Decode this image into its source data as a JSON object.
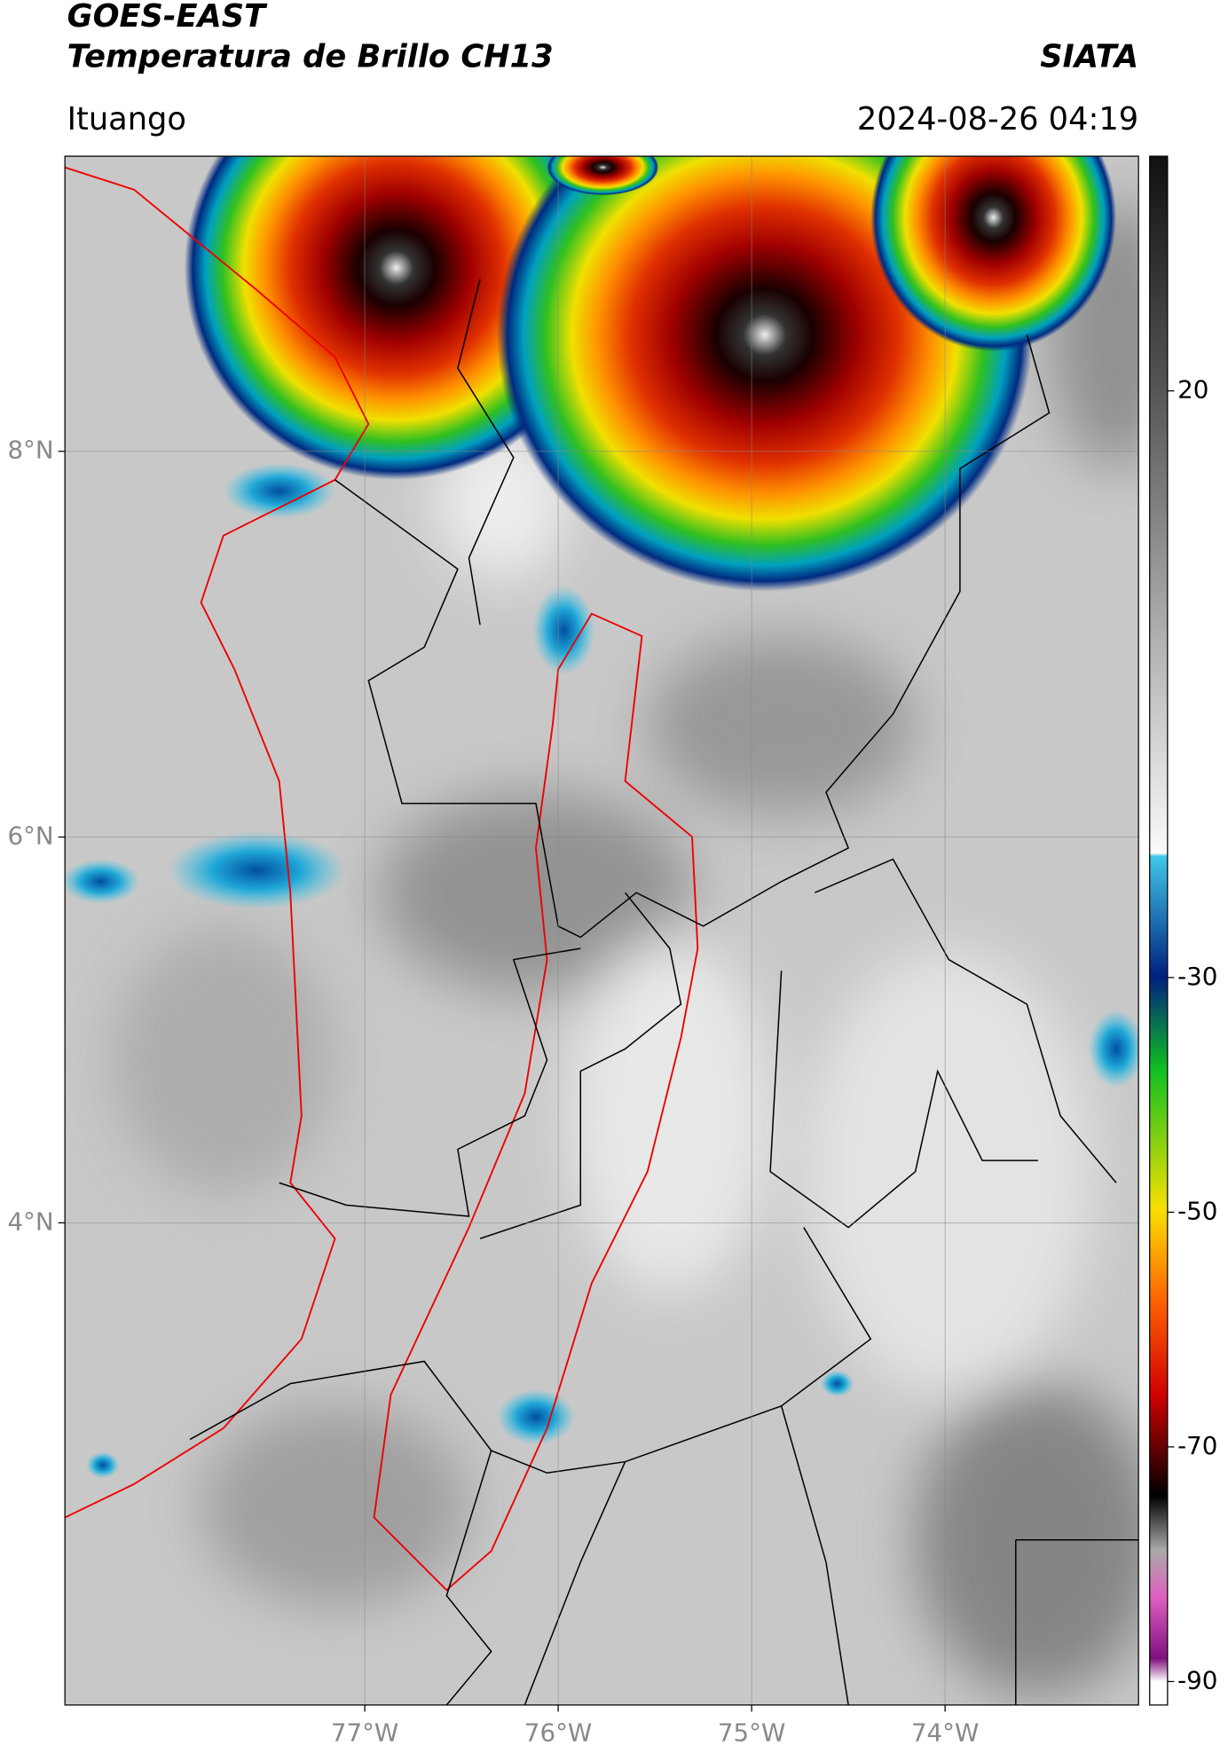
{
  "header": {
    "title": "GOES-EAST",
    "subtitle": "Temperatura de Brillo CH13",
    "source": "SIATA",
    "location": "Ituango",
    "datetime": "2024-08-26 04:19"
  },
  "map": {
    "xlim": [
      -78.55,
      -73
    ],
    "ylim": [
      1.5,
      9.53
    ],
    "xticks": [
      {
        "value": -77,
        "label": "77°W"
      },
      {
        "value": -76,
        "label": "76°W"
      },
      {
        "value": -75,
        "label": "75°W"
      },
      {
        "value": -74,
        "label": "74°W"
      }
    ],
    "yticks": [
      {
        "value": 8,
        "label": "8°N"
      },
      {
        "value": 6,
        "label": "6°N"
      },
      {
        "value": 4,
        "label": "4°N"
      }
    ],
    "grid": true
  },
  "colorbar": {
    "lim": [
      -92,
      40
    ],
    "ticks": [
      20,
      -30,
      -50,
      -70,
      -90
    ]
  }
}
